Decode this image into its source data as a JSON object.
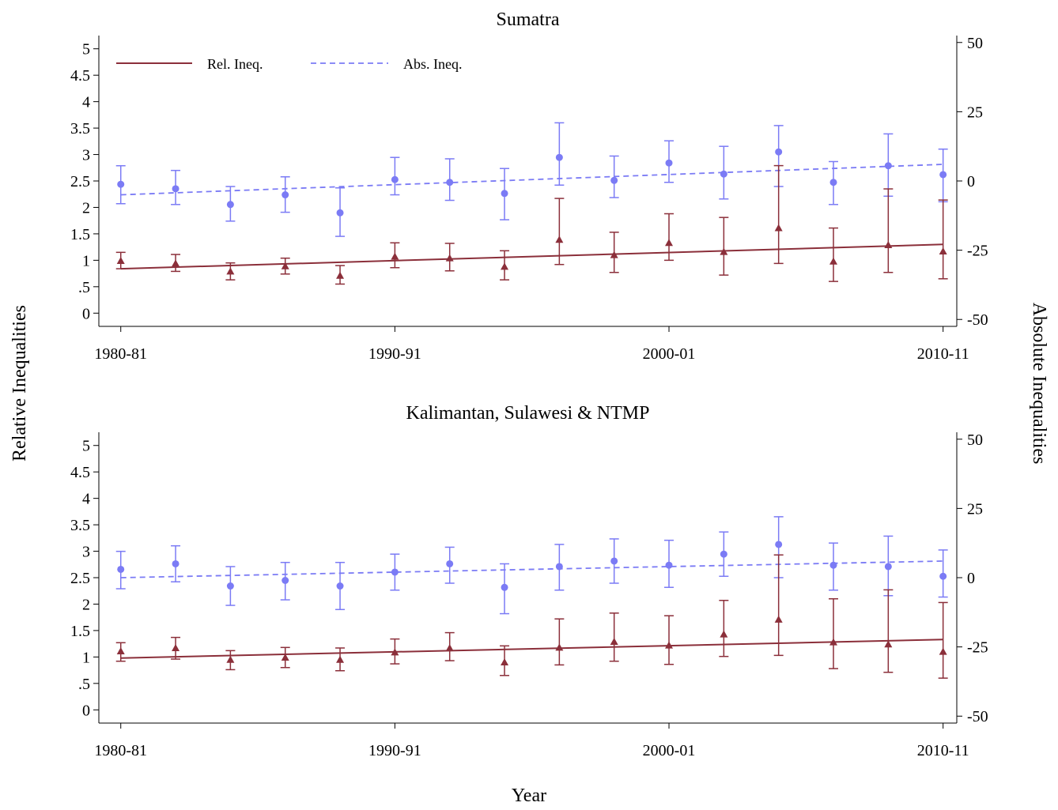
{
  "chart_data": {
    "type": "line",
    "xlabel": "Year",
    "ylabel_left": "Relative Inequalities",
    "ylabel_right": "Absolute Inequalities",
    "colors": {
      "relative": "#8b2f3a",
      "absolute": "#7b7bf5"
    },
    "legend": {
      "position": "top-left",
      "entries": [
        {
          "label": "Rel. Ineq.",
          "style": "solid",
          "series": "relative"
        },
        {
          "label": "Abs. Ineq.",
          "style": "dashed",
          "series": "absolute"
        }
      ]
    },
    "x_ticks": [
      {
        "value": 1980,
        "label": "1980-81"
      },
      {
        "value": 1990,
        "label": "1990-91"
      },
      {
        "value": 2000,
        "label": "2000-01"
      },
      {
        "value": 2010,
        "label": "2010-11"
      }
    ],
    "xlim": [
      1979.2,
      2010.5
    ],
    "left_axis": {
      "ylim": [
        -0.25,
        5.25
      ],
      "ticks": [
        {
          "value": 0,
          "label": "0"
        },
        {
          "value": 0.5,
          "label": ".5"
        },
        {
          "value": 1,
          "label": "1"
        },
        {
          "value": 1.5,
          "label": "1.5"
        },
        {
          "value": 2,
          "label": "2"
        },
        {
          "value": 2.5,
          "label": "2.5"
        },
        {
          "value": 3,
          "label": "3"
        },
        {
          "value": 3.5,
          "label": "3.5"
        },
        {
          "value": 4,
          "label": "4"
        },
        {
          "value": 4.5,
          "label": "4.5"
        },
        {
          "value": 5,
          "label": "5"
        }
      ]
    },
    "right_axis": {
      "ylim": [
        -52.5,
        52.5
      ],
      "ticks": [
        {
          "value": -50,
          "label": "-50"
        },
        {
          "value": -25,
          "label": "-25"
        },
        {
          "value": 0,
          "label": "0"
        },
        {
          "value": 25,
          "label": "25"
        },
        {
          "value": 50,
          "label": "50"
        }
      ]
    },
    "x": [
      1980,
      1982,
      1984,
      1986,
      1988,
      1990,
      1992,
      1994,
      1996,
      1998,
      2000,
      2002,
      2004,
      2006,
      2008,
      2010
    ],
    "panels": [
      {
        "title": "Sumatra",
        "relative": {
          "values": [
            0.99,
            0.94,
            0.79,
            0.89,
            0.71,
            1.07,
            1.04,
            0.88,
            1.39,
            1.1,
            1.33,
            1.16,
            1.61,
            0.98,
            1.29,
            1.17
          ],
          "low": [
            0.84,
            0.79,
            0.63,
            0.74,
            0.55,
            0.86,
            0.8,
            0.63,
            0.92,
            0.77,
            1.0,
            0.72,
            0.94,
            0.6,
            0.77,
            0.65
          ],
          "high": [
            1.15,
            1.11,
            0.95,
            1.04,
            0.9,
            1.33,
            1.32,
            1.18,
            2.17,
            1.53,
            1.88,
            1.81,
            2.79,
            1.61,
            2.35,
            2.14
          ],
          "trend": [
            0.84,
            1.3
          ]
        },
        "absolute": {
          "values": [
            -1.2,
            -2.8,
            -8.5,
            -5.0,
            -11.5,
            0.5,
            -0.5,
            -4.5,
            8.5,
            0.2,
            6.5,
            2.5,
            10.5,
            -0.5,
            5.5,
            2.3
          ],
          "low": [
            -8.2,
            -8.5,
            -14.5,
            -11.3,
            -20.0,
            -5.0,
            -7.0,
            -14.0,
            -1.5,
            -6.0,
            -0.5,
            -6.5,
            -2.0,
            -8.5,
            -5.5,
            -7.5
          ],
          "high": [
            5.5,
            3.8,
            -2.0,
            1.5,
            -2.5,
            8.5,
            8.0,
            4.5,
            21.0,
            9.0,
            14.5,
            12.5,
            20.0,
            7.0,
            17.0,
            11.5
          ],
          "trend": [
            -5.0,
            6.0
          ]
        }
      },
      {
        "title": "Kalimantan, Sulawesi & NTMP",
        "relative": {
          "values": [
            1.11,
            1.17,
            0.95,
            0.99,
            0.95,
            1.09,
            1.17,
            0.9,
            1.18,
            1.29,
            1.22,
            1.43,
            1.71,
            1.28,
            1.24,
            1.1
          ],
          "low": [
            0.92,
            0.96,
            0.76,
            0.8,
            0.74,
            0.87,
            0.93,
            0.65,
            0.85,
            0.92,
            0.86,
            1.01,
            1.03,
            0.78,
            0.71,
            0.6
          ],
          "high": [
            1.27,
            1.37,
            1.12,
            1.18,
            1.17,
            1.34,
            1.46,
            1.21,
            1.72,
            1.83,
            1.78,
            2.07,
            2.93,
            2.1,
            2.27,
            2.03
          ],
          "trend": [
            0.98,
            1.33
          ]
        },
        "absolute": {
          "values": [
            3.0,
            5.0,
            -3.0,
            -1.0,
            -3.0,
            2.0,
            5.0,
            -3.5,
            4.0,
            6.0,
            4.5,
            8.5,
            12.0,
            4.5,
            4.0,
            0.5
          ],
          "low": [
            -4.0,
            -1.5,
            -10.0,
            -8.0,
            -11.5,
            -4.5,
            -2.0,
            -13.0,
            -4.5,
            -2.0,
            -3.5,
            0.5,
            0.0,
            -4.5,
            -6.5,
            -7.0
          ],
          "high": [
            9.5,
            11.5,
            4.0,
            5.5,
            5.5,
            8.5,
            11.0,
            5.0,
            12.0,
            14.0,
            13.5,
            16.5,
            22.0,
            12.5,
            15.0,
            10.0
          ],
          "trend": [
            0.0,
            6.0
          ]
        }
      }
    ]
  }
}
